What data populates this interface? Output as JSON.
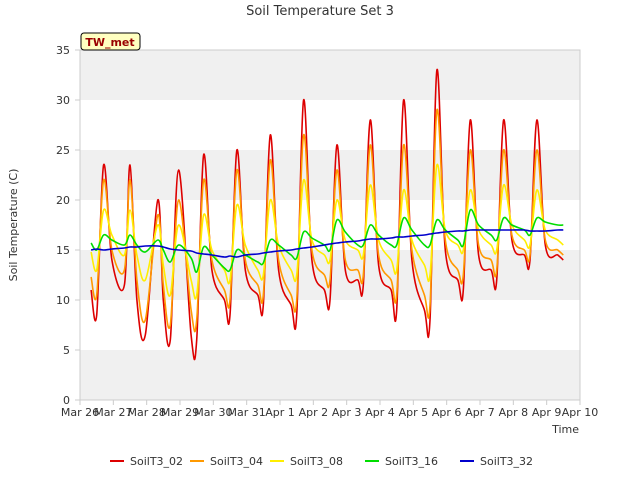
{
  "chart_data": {
    "type": "line",
    "title": "Soil Temperature Set 3",
    "xlabel": "Time",
    "ylabel": "Soil Temperature (C)",
    "ylim": [
      0,
      35
    ],
    "yticks": [
      0,
      5,
      10,
      15,
      20,
      25,
      30,
      35
    ],
    "xlim": [
      "2023-03-26",
      "2023-04-10"
    ],
    "xtick_labels": [
      "Mar 26",
      "Mar 27",
      "Mar 28",
      "Mar 29",
      "Mar 30",
      "Mar 31",
      "Apr 1",
      "Apr 2",
      "Apr 3",
      "Apr 4",
      "Apr 5",
      "Apr 6",
      "Apr 7",
      "Apr 8",
      "Apr 9",
      "Apr 10"
    ],
    "x_dates": [
      "2023-03-26T08:00",
      "2023-03-26T12:00",
      "2023-03-26T17:00",
      "2023-03-26T23:00",
      "2023-03-27T08:00",
      "2023-03-27T12:00",
      "2023-03-27T17:00",
      "2023-03-27T23:00",
      "2023-03-28T08:00",
      "2023-03-28T12:00",
      "2023-03-28T17:00",
      "2023-03-28T23:00",
      "2023-03-29T08:00",
      "2023-03-29T12:00",
      "2023-03-29T17:00",
      "2023-03-29T23:00",
      "2023-03-30T08:00",
      "2023-03-30T12:00",
      "2023-03-30T17:00",
      "2023-03-30T23:00",
      "2023-03-31T08:00",
      "2023-03-31T12:00",
      "2023-03-31T17:00",
      "2023-03-31T23:00",
      "2023-04-01T08:00",
      "2023-04-01T12:00",
      "2023-04-01T17:00",
      "2023-04-01T23:00",
      "2023-04-02T08:00",
      "2023-04-02T12:00",
      "2023-04-02T17:00",
      "2023-04-02T23:00",
      "2023-04-03T08:00",
      "2023-04-03T12:00",
      "2023-04-03T17:00",
      "2023-04-03T23:00",
      "2023-04-04T08:00",
      "2023-04-04T12:00",
      "2023-04-04T17:00",
      "2023-04-04T23:00",
      "2023-04-05T08:00",
      "2023-04-05T12:00",
      "2023-04-05T17:00",
      "2023-04-05T23:00",
      "2023-04-06T08:00",
      "2023-04-06T12:00",
      "2023-04-06T17:00",
      "2023-04-06T23:00",
      "2023-04-07T08:00",
      "2023-04-07T12:00",
      "2023-04-07T17:00",
      "2023-04-07T23:00",
      "2023-04-08T08:00",
      "2023-04-08T12:00",
      "2023-04-08T17:00",
      "2023-04-08T23:00",
      "2023-04-09T08:00",
      "2023-04-09T12:00"
    ],
    "series": [
      {
        "name": "SoilT3_02",
        "color": "#dd0000",
        "values": [
          11.0,
          8.5,
          23.5,
          14.0,
          11.5,
          23.5,
          10.0,
          6.5,
          20.0,
          10.0,
          6.0,
          23.0,
          6.5,
          6.0,
          24.5,
          13.0,
          10.0,
          8.5,
          25.0,
          13.0,
          10.5,
          9.5,
          26.5,
          13.0,
          9.5,
          8.5,
          30.0,
          14.0,
          11.0,
          10.0,
          25.5,
          13.0,
          12.0,
          11.5,
          28.0,
          13.5,
          11.0,
          9.0,
          30.0,
          14.0,
          9.0,
          8.0,
          33.0,
          15.0,
          12.0,
          11.0,
          28.0,
          14.5,
          13.0,
          12.0,
          28.0,
          16.0,
          14.5,
          14.0,
          28.0,
          15.5,
          14.5,
          14.0
        ]
      },
      {
        "name": "SoilT3_04",
        "color": "#ff9900",
        "values": [
          12.3,
          10.5,
          22.0,
          15.0,
          13.0,
          22.0,
          12.0,
          8.0,
          18.5,
          11.5,
          7.5,
          20.0,
          9.0,
          8.0,
          22.0,
          14.0,
          11.0,
          10.0,
          23.0,
          14.0,
          11.5,
          10.5,
          24.0,
          14.0,
          10.5,
          10.0,
          26.5,
          15.0,
          12.5,
          12.0,
          23.0,
          14.0,
          13.0,
          12.5,
          25.5,
          14.5,
          12.0,
          10.5,
          25.5,
          15.0,
          10.5,
          9.5,
          29.0,
          16.0,
          13.0,
          12.5,
          25.0,
          15.5,
          14.0,
          13.0,
          25.0,
          16.5,
          15.0,
          14.5,
          25.0,
          16.0,
          15.0,
          14.5
        ]
      },
      {
        "name": "SoilT3_08",
        "color": "#ffee00",
        "values": [
          14.8,
          13.0,
          19.0,
          16.5,
          14.5,
          19.0,
          14.5,
          12.0,
          17.5,
          13.5,
          10.5,
          17.5,
          12.0,
          10.5,
          18.5,
          15.0,
          13.0,
          12.0,
          19.5,
          15.5,
          13.0,
          12.5,
          20.0,
          15.5,
          13.0,
          12.5,
          22.0,
          16.0,
          14.5,
          14.0,
          20.0,
          16.0,
          15.0,
          14.5,
          21.5,
          16.0,
          14.0,
          13.0,
          21.0,
          16.0,
          13.5,
          12.5,
          23.5,
          17.0,
          15.5,
          15.0,
          21.0,
          17.0,
          15.5,
          15.0,
          21.5,
          17.5,
          16.0,
          15.5,
          21.0,
          17.0,
          16.0,
          15.5
        ]
      },
      {
        "name": "SoilT3_16",
        "color": "#00dd00",
        "values": [
          15.7,
          15.0,
          16.5,
          16.0,
          15.5,
          16.5,
          15.5,
          14.8,
          16.0,
          15.0,
          13.8,
          15.5,
          14.2,
          12.8,
          15.3,
          14.5,
          13.2,
          13.0,
          15.0,
          14.5,
          13.8,
          13.7,
          16.0,
          15.5,
          14.5,
          14.2,
          16.8,
          16.2,
          15.5,
          15.0,
          18.0,
          16.8,
          15.5,
          15.5,
          17.5,
          16.5,
          15.5,
          15.5,
          18.2,
          17.0,
          15.5,
          15.5,
          18.0,
          17.0,
          16.0,
          15.5,
          19.0,
          17.5,
          16.5,
          16.0,
          18.2,
          17.5,
          17.0,
          16.5,
          18.2,
          17.8,
          17.5,
          17.5
        ]
      },
      {
        "name": "SoilT3_32",
        "color": "#0000cc",
        "values": [
          15.0,
          15.1,
          15.0,
          15.1,
          15.2,
          15.3,
          15.3,
          15.4,
          15.4,
          15.3,
          15.1,
          15.0,
          14.9,
          14.7,
          14.6,
          14.5,
          14.3,
          14.4,
          14.3,
          14.5,
          14.6,
          14.7,
          14.8,
          14.9,
          15.0,
          15.1,
          15.2,
          15.3,
          15.5,
          15.6,
          15.7,
          15.8,
          15.9,
          16.0,
          16.1,
          16.1,
          16.2,
          16.3,
          16.3,
          16.4,
          16.5,
          16.6,
          16.7,
          16.8,
          16.9,
          16.9,
          17.0,
          17.0,
          17.0,
          17.0,
          17.0,
          17.0,
          17.0,
          16.9,
          16.9,
          16.9,
          17.0,
          17.0
        ]
      }
    ],
    "legend": {
      "placement": "bottom",
      "entries": [
        "SoilT3_02",
        "SoilT3_04",
        "SoilT3_08",
        "SoilT3_16",
        "SoilT3_32"
      ]
    },
    "annotation": "TW_met",
    "grid": true,
    "style": {
      "band_color": "#f0f0f0",
      "plot_bg": "#ffffff",
      "annotation_bg": "#ffffc0",
      "annotation_border": "#000000",
      "annotation_text": "#990000"
    }
  }
}
